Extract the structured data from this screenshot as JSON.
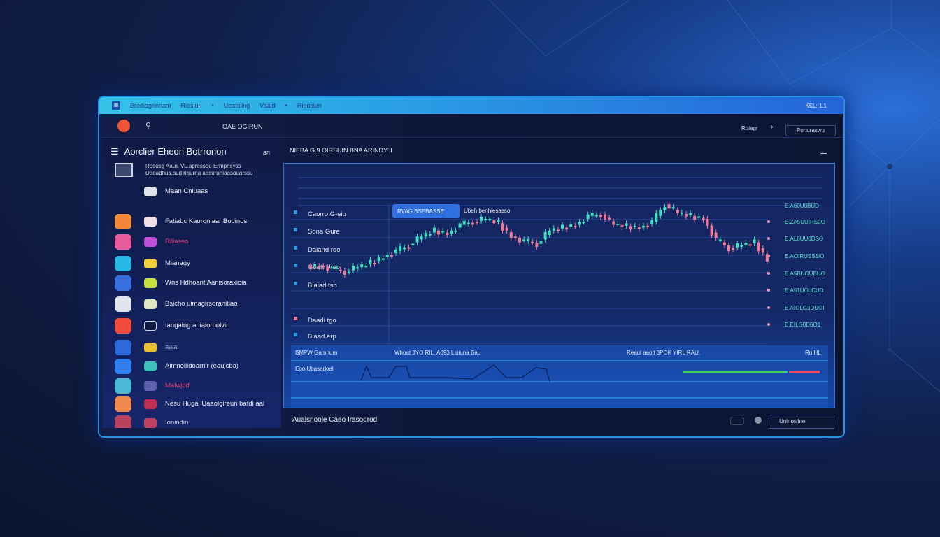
{
  "window": {
    "title_items": [
      "Brodiagrinnam",
      "Riosiun",
      "•",
      "Ueatsiing",
      "Vsaid",
      "•",
      "Rionsiun"
    ],
    "title_right": "KSL: 1.1",
    "toolbar": {
      "title": "OAE OGIRUN",
      "right_label": "Rdiagr",
      "button": "Ponuraswu"
    },
    "colors": {
      "accent": "#2a9fe6",
      "up": "#3fe0c0",
      "down": "#f07a9a",
      "record_dot": "#f0553a"
    }
  },
  "sidebar": {
    "title": "Aorclier Eheon Botrronon",
    "title_badge": "an",
    "intro": [
      "Rosusg Aaua VL.aprossou Ermpnsyss",
      "Daoadhus.aud riaurna aasuraniaasauarssu"
    ],
    "items": [
      {
        "label": "Maan Cniuaas",
        "color": "#e8ecf5",
        "icon": "chart-icon"
      },
      {
        "label": "Fatiabc Kaoroniaar Bodinos",
        "color": "#e8ecf5",
        "icon": "wallet-icon"
      },
      {
        "label": "Riliasso",
        "color": "#e0407a",
        "icon": "heart-icon"
      },
      {
        "label": "Mianagy",
        "color": "#e8ecf5",
        "icon": "card-icon"
      },
      {
        "label": "Wns Hdhoarit Aanisoraxioia",
        "color": "#e8ecf5",
        "icon": "coin-icon"
      },
      {
        "label": "Bsicho uimagirsoranitiao",
        "color": "#e8ecf5",
        "icon": "news-icon"
      },
      {
        "label": "Iangaing aniaioroolvin",
        "color": "#e8ecf5",
        "icon": "frame-icon"
      },
      {
        "label": "awa",
        "color": "#9aa8d0",
        "icon": "bolt-icon"
      },
      {
        "label": "Aimnolildoarnir (eaujcba)",
        "color": "#e8ecf5",
        "icon": "compass-icon"
      },
      {
        "label": "Malwjdd",
        "color": "#e0407a",
        "icon": "globe-icon"
      },
      {
        "label": "Nesu Hugal Uaaolgireun bafdi aai",
        "color": "#e8ecf5",
        "icon": "mail-icon"
      },
      {
        "label": "Ionindin",
        "color": "#cfd6ea",
        "icon": "user-icon"
      }
    ]
  },
  "main": {
    "title": "NIEBA G.9 OIRSUIN BNA ARINDY' I",
    "tag": "RVAG BSEBASSE",
    "tag_note": "Ubeh benhiesasso",
    "footer": "Aualsnoole  Caeo Irasodrod",
    "footer_button": "Uninosiine"
  },
  "chart_data": {
    "type": "candlestick",
    "row_labels": [
      "Caorro G-eip",
      "Sona Gure",
      "Daiand roo",
      "Goatt Urso",
      "Biaiad tso",
      "Daadi tgo",
      "Biaad erp"
    ],
    "price_labels": [
      "E.A60U0BUD",
      "E.ZA5UUIRS0O",
      "E.AL6UU0DSO",
      "E.AOIRUSS1IO",
      "E.A5BUOUBUO",
      "E.A51UOLCUD",
      "E.AIOLG3DUOI",
      "E.EILG0D6O1"
    ],
    "close": [
      28,
      26,
      24,
      27,
      30,
      34,
      38,
      42,
      48,
      52,
      50,
      56,
      58,
      60,
      57,
      48,
      45,
      43,
      52,
      54,
      56,
      62,
      63,
      56,
      55,
      54,
      58,
      70,
      64,
      62,
      60,
      46,
      40,
      42,
      44,
      32
    ],
    "bottom_panel": {
      "header_left": "BMPW Gamnurn",
      "header_mid": "Whoat 3YO RIL. A093  Liuiuna Bau",
      "header_right": "Reaul aaolt 3POK YIRL RAU,",
      "header_far": "RuIHL",
      "row_label": "Eoo Ubasadoal"
    }
  }
}
